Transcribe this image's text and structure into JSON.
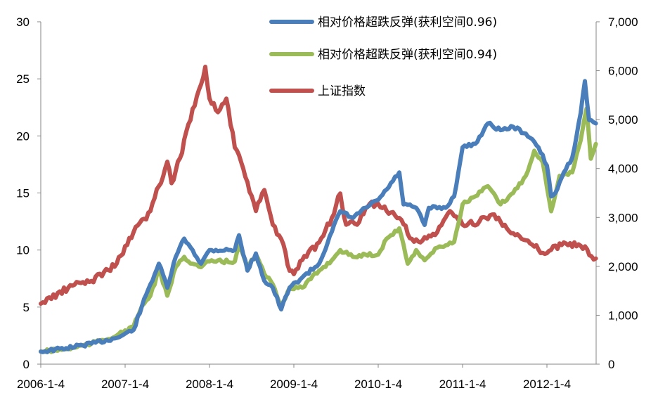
{
  "chart_data": {
    "type": "line",
    "title": "",
    "xlabel": "",
    "ylabel_left": "",
    "ylabel_right": "",
    "x_ticks": [
      "2006-1-4",
      "2007-1-4",
      "2008-1-4",
      "2009-1-4",
      "2010-1-4",
      "2011-1-4",
      "2012-1-4"
    ],
    "x_range_years": [
      2006.0,
      2012.58
    ],
    "y_left": {
      "range": [
        0,
        30
      ],
      "ticks": [
        "0",
        "5",
        "10",
        "15",
        "20",
        "25",
        "30"
      ]
    },
    "y_right": {
      "range": [
        0,
        7000
      ],
      "ticks": [
        "0",
        "1,000",
        "2,000",
        "3,000",
        "4,000",
        "5,000",
        "6,000",
        "7,000"
      ]
    },
    "grid": false,
    "legend_position": "top-right",
    "series": [
      {
        "name": "相对价格超跌反弹(获利空间0.96)",
        "axis": "left",
        "color": "#4a7ebb",
        "x": [
          2006.0,
          2006.3,
          2006.6,
          2006.9,
          2007.1,
          2007.2,
          2007.3,
          2007.4,
          2007.5,
          2007.6,
          2007.7,
          2007.8,
          2007.9,
          2008.0,
          2008.3,
          2008.35,
          2008.45,
          2008.55,
          2008.65,
          2008.75,
          2008.85,
          2008.95,
          2009.1,
          2009.3,
          2009.45,
          2009.55,
          2009.7,
          2009.85,
          2010.0,
          2010.1,
          2010.25,
          2010.3,
          2010.45,
          2010.55,
          2010.6,
          2010.8,
          2010.9,
          2011.0,
          2011.15,
          2011.3,
          2011.45,
          2011.6,
          2011.75,
          2011.9,
          2012.0,
          2012.05,
          2012.1,
          2012.2,
          2012.3,
          2012.4,
          2012.45,
          2012.5,
          2012.58
        ],
        "values": [
          1.1,
          1.4,
          1.8,
          2.3,
          3.0,
          5.1,
          7.0,
          8.8,
          6.7,
          9.4,
          11.0,
          10.0,
          8.8,
          10.0,
          10.0,
          11.3,
          8.2,
          9.7,
          7.3,
          6.7,
          4.8,
          6.7,
          7.6,
          8.8,
          11.6,
          13.4,
          12.8,
          13.7,
          14.4,
          15.3,
          16.8,
          14.0,
          13.7,
          12.2,
          13.7,
          13.7,
          14.7,
          19.0,
          19.3,
          21.1,
          20.5,
          20.8,
          20.2,
          19.0,
          17.4,
          14.7,
          15.0,
          16.8,
          18.1,
          22.0,
          24.8,
          21.4,
          21.1
        ]
      },
      {
        "name": "相对价格超跌反弹(获利空间0.94)",
        "axis": "left",
        "color": "#9bbb59",
        "x": [
          2006.0,
          2006.3,
          2006.6,
          2006.9,
          2007.1,
          2007.2,
          2007.3,
          2007.4,
          2007.5,
          2007.6,
          2007.7,
          2007.8,
          2007.9,
          2008.0,
          2008.3,
          2008.35,
          2008.45,
          2008.55,
          2008.65,
          2008.75,
          2008.85,
          2008.95,
          2009.1,
          2009.3,
          2009.45,
          2009.55,
          2009.7,
          2009.85,
          2010.0,
          2010.1,
          2010.25,
          2010.35,
          2010.45,
          2010.55,
          2010.7,
          2010.9,
          2011.0,
          2011.15,
          2011.3,
          2011.45,
          2011.6,
          2011.75,
          2011.85,
          2011.95,
          2012.05,
          2012.15,
          2012.3,
          2012.4,
          2012.47,
          2012.52,
          2012.58
        ],
        "values": [
          1.1,
          1.3,
          1.8,
          2.5,
          3.3,
          5.1,
          6.0,
          8.2,
          6.0,
          8.5,
          9.4,
          8.8,
          8.5,
          9.0,
          9.0,
          10.4,
          8.5,
          9.6,
          7.9,
          7.0,
          5.1,
          6.7,
          6.7,
          8.2,
          9.1,
          10.0,
          9.4,
          9.6,
          9.6,
          11.0,
          11.9,
          8.8,
          10.0,
          9.1,
          10.2,
          10.7,
          14.0,
          14.7,
          15.6,
          14.0,
          15.0,
          16.5,
          18.7,
          17.7,
          13.4,
          16.5,
          16.8,
          19.6,
          22.4,
          18.0,
          19.3
        ]
      },
      {
        "name": "上证指数",
        "axis": "right",
        "color": "#c0504d",
        "x": [
          2006.0,
          2006.4,
          2006.6,
          2006.9,
          2007.1,
          2007.3,
          2007.4,
          2007.5,
          2007.55,
          2007.65,
          2007.8,
          2007.9,
          2007.95,
          2008.0,
          2008.1,
          2008.2,
          2008.3,
          2008.4,
          2008.55,
          2008.65,
          2008.75,
          2008.85,
          2008.95,
          2009.0,
          2009.1,
          2009.3,
          2009.45,
          2009.55,
          2009.62,
          2009.75,
          2009.9,
          2010.0,
          2010.1,
          2010.25,
          2010.4,
          2010.5,
          2010.7,
          2010.85,
          2011.0,
          2011.2,
          2011.35,
          2011.5,
          2011.7,
          2011.9,
          2012.0,
          2012.2,
          2012.4,
          2012.58
        ],
        "values": [
          1236,
          1624,
          1700,
          2055,
          2700,
          3130,
          3640,
          4140,
          3700,
          4210,
          5220,
          5720,
          6080,
          5430,
          5150,
          5430,
          4430,
          4000,
          3130,
          3560,
          2850,
          2560,
          1910,
          1840,
          2130,
          2490,
          2990,
          3490,
          2850,
          2850,
          3280,
          3280,
          3130,
          2990,
          2560,
          2490,
          2700,
          3130,
          2850,
          2920,
          3060,
          2850,
          2560,
          2340,
          2270,
          2490,
          2420,
          2160
        ]
      }
    ]
  }
}
